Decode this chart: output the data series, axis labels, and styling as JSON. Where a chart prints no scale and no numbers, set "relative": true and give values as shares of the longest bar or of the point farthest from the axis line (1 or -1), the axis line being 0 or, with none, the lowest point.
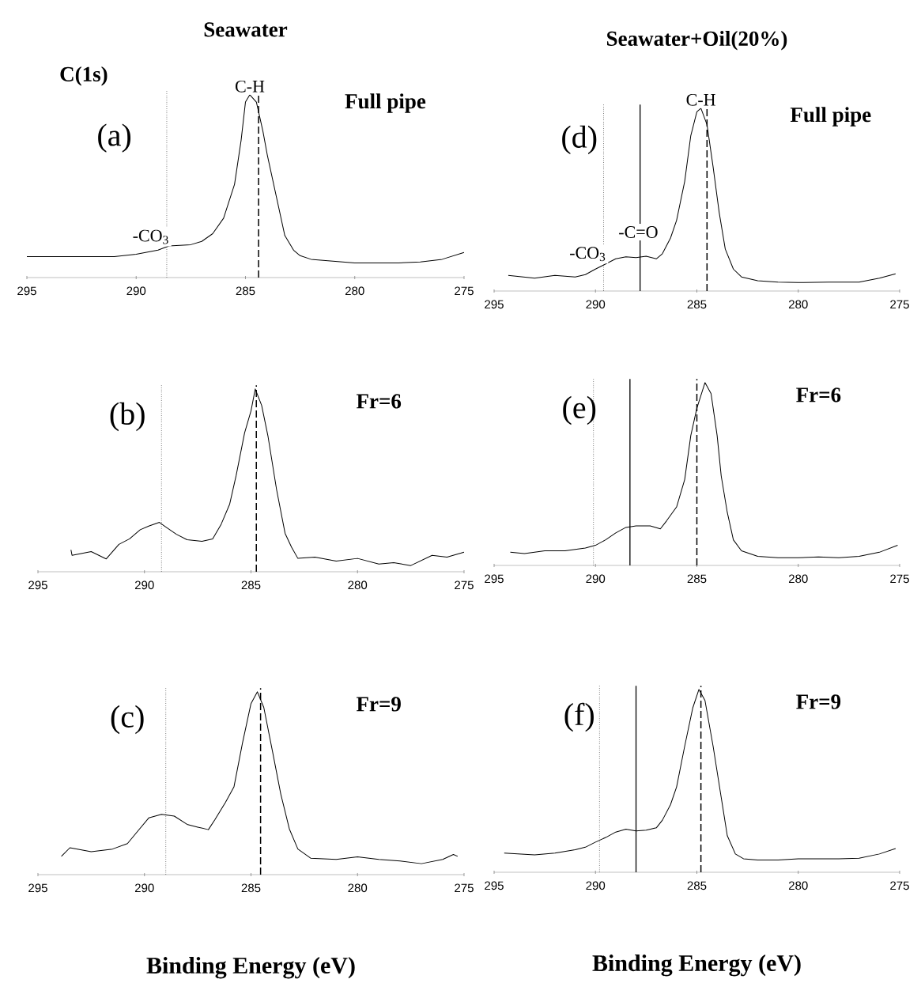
{
  "chart_data": [
    {
      "type": "line",
      "title": "Seawater",
      "relative": true,
      "color": "#000000",
      "xlim": [
        295,
        275
      ],
      "xticks": [
        295,
        290,
        285,
        280,
        275
      ],
      "x": [
        295,
        293,
        291,
        290,
        289,
        288.5,
        287.5,
        287,
        286.5,
        286,
        285.5,
        285.2,
        285,
        284.8,
        284.5,
        284.2,
        284,
        283.6,
        283.2,
        282.8,
        282.5,
        282,
        281,
        280,
        278,
        277,
        276,
        275
      ],
      "values": [
        0.115,
        0.115,
        0.115,
        0.128,
        0.15,
        0.173,
        0.18,
        0.198,
        0.24,
        0.325,
        0.51,
        0.75,
        0.96,
        1.0,
        0.96,
        0.8,
        0.67,
        0.45,
        0.23,
        0.15,
        0.12,
        0.1,
        0.09,
        0.08,
        0.08,
        0.085,
        0.1,
        0.137
      ],
      "ref_lines": [
        {
          "axis": "x",
          "value": 288.6,
          "line_style": "dotted"
        },
        {
          "axis": "x",
          "value": 284.4,
          "line_style": "dashed"
        }
      ],
      "annotations": [
        "C(1s)",
        "Full pipe",
        "(a)",
        {
          "text": "C-H",
          "x": 284.8,
          "y": 1.0
        },
        {
          "text": "-CO$_{3}$",
          "x": 288.6,
          "y": 0.17
        }
      ]
    },
    {
      "type": "line",
      "relative": true,
      "color": "#000000",
      "xlim": [
        295,
        275
      ],
      "xticks": [
        295,
        290,
        285,
        280,
        275
      ],
      "x": [
        293.45,
        293.4,
        292.5,
        291.8,
        291.2,
        290.7,
        290.2,
        289.8,
        289.3,
        289.0,
        288.5,
        288.0,
        287.3,
        286.8,
        286.4,
        286.0,
        285.7,
        285.3,
        285.0,
        284.8,
        284.5,
        284.2,
        283.8,
        283.4,
        283.1,
        282.8,
        282,
        281,
        280,
        279,
        278.3,
        277.5,
        276.5,
        275.8,
        275
      ],
      "values": [
        0.12,
        0.09,
        0.11,
        0.07,
        0.15,
        0.18,
        0.23,
        0.25,
        0.27,
        0.245,
        0.205,
        0.175,
        0.167,
        0.18,
        0.26,
        0.37,
        0.525,
        0.76,
        0.88,
        1.0,
        0.91,
        0.74,
        0.45,
        0.21,
        0.135,
        0.073,
        0.08,
        0.058,
        0.073,
        0.042,
        0.05,
        0.034,
        0.09,
        0.08,
        0.107
      ],
      "ref_lines": [
        {
          "axis": "x",
          "value": 289.2,
          "line_style": "dotted"
        },
        {
          "axis": "x",
          "value": 284.75,
          "line_style": "dashed"
        }
      ],
      "annotations": [
        "Fr=6",
        "(b)"
      ]
    },
    {
      "type": "line",
      "relative": true,
      "color": "#000000",
      "xlim": [
        295,
        275
      ],
      "xticks": [
        295,
        290,
        285,
        280,
        275
      ],
      "xlabel": "Binding Energy (eV)",
      "x": [
        293.9,
        293.5,
        292.5,
        291.5,
        290.8,
        290.3,
        289.8,
        289.2,
        288.6,
        288.0,
        287.5,
        287.0,
        286.7,
        286.2,
        285.8,
        285.4,
        285.0,
        284.7,
        284.4,
        284.0,
        283.6,
        283.2,
        282.8,
        282.2,
        281,
        280,
        279,
        278,
        277,
        276,
        275.5,
        275.3
      ],
      "values": [
        0.1,
        0.147,
        0.125,
        0.14,
        0.17,
        0.24,
        0.31,
        0.33,
        0.32,
        0.275,
        0.26,
        0.246,
        0.3,
        0.395,
        0.48,
        0.72,
        0.936,
        1.0,
        0.915,
        0.68,
        0.44,
        0.25,
        0.14,
        0.09,
        0.083,
        0.097,
        0.083,
        0.075,
        0.06,
        0.083,
        0.11,
        0.1
      ],
      "ref_lines": [
        {
          "axis": "x",
          "value": 289.0,
          "line_style": "dotted"
        },
        {
          "axis": "x",
          "value": 284.55,
          "line_style": "dashed"
        }
      ],
      "annotations": [
        "Fr=9",
        "(c)"
      ]
    },
    {
      "type": "line",
      "title": "Seawater+Oil(20%)",
      "relative": true,
      "color": "#000000",
      "xlim": [
        295,
        275
      ],
      "xticks": [
        295,
        290,
        285,
        280,
        275
      ],
      "x": [
        294.3,
        293,
        292,
        291,
        290.5,
        290,
        289.5,
        289,
        288.5,
        288,
        287.5,
        287,
        286.7,
        286.3,
        286,
        285.6,
        285.3,
        285.0,
        284.8,
        284.5,
        284.2,
        283.9,
        283.6,
        283.2,
        282.8,
        282,
        281,
        280,
        278.5,
        277,
        276,
        275.2
      ],
      "values": [
        0.085,
        0.07,
        0.085,
        0.077,
        0.09,
        0.12,
        0.148,
        0.176,
        0.187,
        0.183,
        0.19,
        0.176,
        0.204,
        0.29,
        0.387,
        0.6,
        0.85,
        0.98,
        1.0,
        0.91,
        0.68,
        0.43,
        0.23,
        0.12,
        0.077,
        0.056,
        0.049,
        0.046,
        0.049,
        0.049,
        0.07,
        0.094
      ],
      "ref_lines": [
        {
          "axis": "x",
          "value": 289.6,
          "line_style": "dotted"
        },
        {
          "axis": "x",
          "value": 287.8,
          "line_style": "solid"
        },
        {
          "axis": "x",
          "value": 284.5,
          "line_style": "dashed"
        }
      ],
      "annotations": [
        "Full pipe",
        "(d)",
        {
          "text": "C-H",
          "x": 284.8,
          "y": 1.0
        },
        {
          "text": "-CO$_{3}$",
          "x": 289.6,
          "y": 0.15
        },
        {
          "text": "-C=O",
          "x": 288.2,
          "y": 0.19
        }
      ]
    },
    {
      "type": "line",
      "relative": true,
      "color": "#000000",
      "xlim": [
        295,
        275
      ],
      "xticks": [
        295,
        290,
        285,
        280,
        275
      ],
      "x": [
        294.2,
        293.5,
        292.5,
        291.5,
        290.5,
        290,
        289.5,
        289,
        288.5,
        288,
        287.3,
        286.8,
        286.5,
        286.0,
        285.6,
        285.3,
        285.0,
        284.6,
        284.3,
        284.0,
        283.8,
        283.5,
        283.2,
        282.8,
        282,
        281,
        280,
        279,
        278,
        277,
        276,
        275.1
      ],
      "values": [
        0.072,
        0.065,
        0.08,
        0.08,
        0.095,
        0.11,
        0.14,
        0.178,
        0.208,
        0.216,
        0.216,
        0.2,
        0.243,
        0.32,
        0.47,
        0.71,
        0.86,
        1.0,
        0.94,
        0.71,
        0.49,
        0.29,
        0.14,
        0.08,
        0.05,
        0.042,
        0.042,
        0.047,
        0.042,
        0.05,
        0.072,
        0.11
      ],
      "ref_lines": [
        {
          "axis": "x",
          "value": 290.1,
          "line_style": "dotted"
        },
        {
          "axis": "x",
          "value": 288.3,
          "line_style": "solid"
        },
        {
          "axis": "x",
          "value": 285.0,
          "line_style": "dashed"
        }
      ],
      "annotations": [
        "Fr=6",
        "(e)"
      ]
    },
    {
      "type": "line",
      "relative": true,
      "color": "#000000",
      "xlim": [
        295,
        275
      ],
      "xticks": [
        295,
        290,
        285,
        280,
        275
      ],
      "xlabel": "Binding Energy (eV)",
      "x": [
        294.5,
        293,
        292,
        291,
        290.5,
        290,
        289.5,
        289,
        288.5,
        288,
        287.5,
        287,
        286.7,
        286.3,
        286.0,
        285.6,
        285.2,
        284.9,
        284.6,
        284.2,
        283.8,
        283.5,
        283.1,
        282.7,
        282,
        281,
        280,
        278,
        277,
        276,
        275.2
      ],
      "values": [
        0.105,
        0.095,
        0.105,
        0.123,
        0.137,
        0.165,
        0.19,
        0.22,
        0.236,
        0.226,
        0.23,
        0.243,
        0.285,
        0.37,
        0.467,
        0.69,
        0.9,
        1.0,
        0.94,
        0.69,
        0.41,
        0.2,
        0.1,
        0.074,
        0.067,
        0.067,
        0.074,
        0.074,
        0.077,
        0.1,
        0.13
      ],
      "ref_lines": [
        {
          "axis": "x",
          "value": 289.8,
          "line_style": "dotted"
        },
        {
          "axis": "x",
          "value": 288.0,
          "line_style": "solid"
        },
        {
          "axis": "x",
          "value": 284.8,
          "line_style": "dashed"
        }
      ],
      "annotations": [
        "Fr=9",
        "(f)"
      ]
    }
  ]
}
